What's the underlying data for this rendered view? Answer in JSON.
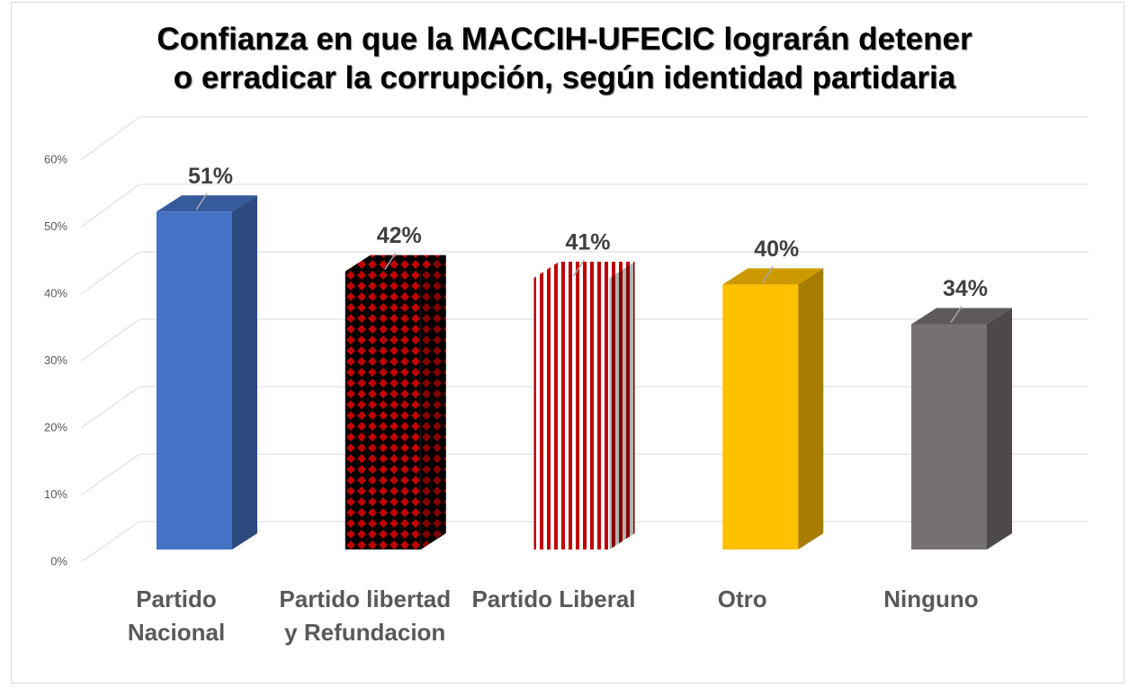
{
  "chart_data": {
    "type": "bar3d",
    "title": "Confianza en que la MACCIH-UFECIC lograrán detener\no erradicar la corrupción, según identidad partidaria",
    "categories": [
      "Partido Nacional",
      "Partido libertad y Refundacion",
      "Partido Liberal",
      "Otro",
      "Ninguno"
    ],
    "values": [
      51,
      42,
      41,
      40,
      34
    ],
    "value_labels": [
      "51%",
      "42%",
      "41%",
      "40%",
      "34%"
    ],
    "colors": [
      "#4472c4",
      "#c00000",
      "#c00000",
      "#ffc000",
      "#767171"
    ],
    "patterns": [
      "solid",
      "diamonds",
      "stripes",
      "solid",
      "solid"
    ],
    "ylim": [
      0,
      60
    ],
    "yticks": [
      {
        "value": 0,
        "label": "0%"
      },
      {
        "value": 10,
        "label": "10%"
      },
      {
        "value": 20,
        "label": "20%"
      },
      {
        "value": 30,
        "label": "30%"
      },
      {
        "value": 40,
        "label": "40%"
      },
      {
        "value": 50,
        "label": "50%"
      },
      {
        "value": 60,
        "label": "60%"
      }
    ],
    "grid": true
  }
}
